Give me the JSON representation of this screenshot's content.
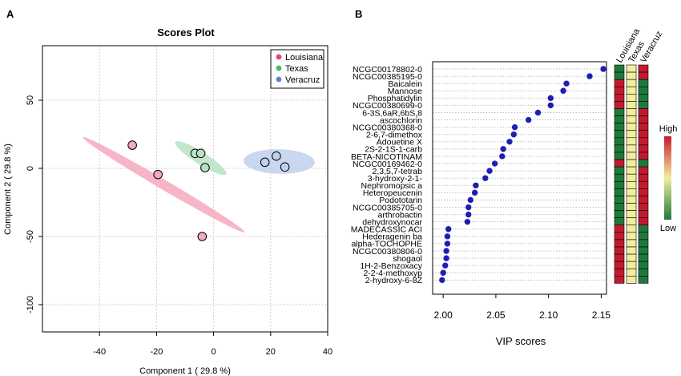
{
  "panel_a": {
    "label": "A"
  },
  "panel_b": {
    "label": "B"
  },
  "chart_data": [
    {
      "type": "scatter",
      "title": "Scores Plot",
      "xlabel": "Component 1 ( 29.8 %)",
      "ylabel": "Component 2 ( 29.8 %)",
      "xlim": [
        -60,
        40
      ],
      "ylim": [
        -120,
        90
      ],
      "xticks": [
        "-40",
        "-20",
        "0",
        "20",
        "40"
      ],
      "yticks": [
        "-100",
        "-50",
        "0",
        "50"
      ],
      "grid": true,
      "legend_position": "top-right",
      "series": [
        {
          "name": "Louisiana",
          "color": "#e8446e",
          "ellipse_color": "#f4a9bd",
          "points": [
            [
              -28.5,
              17
            ],
            [
              -19.5,
              -4.5
            ],
            [
              -4,
              -50
            ]
          ],
          "ellipse": {
            "cx": -17.5,
            "cy": -12,
            "major": 45,
            "minor": 2.6,
            "angle_deg": -51
          }
        },
        {
          "name": "Texas",
          "color": "#4cb76a",
          "ellipse_color": "#b8e3c2",
          "points": [
            [
              -6.5,
              11
            ],
            [
              -4.5,
              11
            ],
            [
              -3,
              0.5
            ]
          ],
          "ellipse": {
            "cx": -4.5,
            "cy": 7.5,
            "major": 15,
            "minor": 3.2,
            "angle_deg": -55
          }
        },
        {
          "name": "Veracruz",
          "color": "#5b82cf",
          "ellipse_color": "#c0d0ef",
          "points": [
            [
              18,
              4.5
            ],
            [
              22,
              9
            ],
            [
              25,
              1
            ]
          ],
          "ellipse": {
            "cx": 23,
            "cy": 5,
            "major": 12.5,
            "minor": 9,
            "angle_deg": -5
          }
        }
      ]
    },
    {
      "type": "scatter",
      "xlabel": "VIP scores",
      "xlim": [
        1.99,
        2.155
      ],
      "xticks": [
        "2.00",
        "2.05",
        "2.10",
        "2.15"
      ],
      "dot_color": "#1e1eb4",
      "items": [
        {
          "name": "NCGC00178802-0",
          "vip": 2.152
        },
        {
          "name": "NCGC00385195-0",
          "vip": 2.139
        },
        {
          "name": "Baicalein",
          "vip": 2.117
        },
        {
          "name": "Mannose",
          "vip": 2.114
        },
        {
          "name": "Phosphatidylin",
          "vip": 2.102
        },
        {
          "name": "NCGC00380699-0",
          "vip": 2.102
        },
        {
          "name": "6-3S,6aR,6bS,8",
          "vip": 2.09
        },
        {
          "name": "ascochlorin",
          "vip": 2.081
        },
        {
          "name": "NCGC00380368-0",
          "vip": 2.068
        },
        {
          "name": "2-6,7-dimethox",
          "vip": 2.067
        },
        {
          "name": "Adouetine X",
          "vip": 2.063
        },
        {
          "name": "2S-2-1S-1-carb",
          "vip": 2.057
        },
        {
          "name": "BETA-NICOTINAM",
          "vip": 2.056
        },
        {
          "name": "NCGC00169462-0",
          "vip": 2.049
        },
        {
          "name": "2,3,5,7-tetrab",
          "vip": 2.044
        },
        {
          "name": "3-hydroxy-2-1-",
          "vip": 2.04
        },
        {
          "name": "Nephromopsic a",
          "vip": 2.031
        },
        {
          "name": "Heteropeucenin",
          "vip": 2.03
        },
        {
          "name": "Podototarin",
          "vip": 2.026
        },
        {
          "name": "NCGC00385705-0",
          "vip": 2.024
        },
        {
          "name": "arthrobactin",
          "vip": 2.024
        },
        {
          "name": "dehydroxynocar",
          "vip": 2.023
        },
        {
          "name": "MADECASSIC ACI",
          "vip": 2.005
        },
        {
          "name": "Hederagenin ba",
          "vip": 2.004
        },
        {
          "name": "alpha-TOCHOPHE",
          "vip": 2.004
        },
        {
          "name": "NCGC00380806-0",
          "vip": 2.003
        },
        {
          "name": "shogaol",
          "vip": 2.003
        },
        {
          "name": "1H-2-Benzoxacy",
          "vip": 2.002
        },
        {
          "name": "2-2-4-methoxyp",
          "vip": 2.0
        },
        {
          "name": "2-hydroxy-6-8Z",
          "vip": 1.999
        }
      ]
    },
    {
      "type": "heatmap",
      "columns": [
        "Louisiana",
        "Texas",
        "Veracruz"
      ],
      "levels": {
        "L": "#1e7a3c",
        "M": "#f2ee9f",
        "H": "#c41a2e"
      },
      "rows": [
        "LMH",
        "LMH",
        "HML",
        "HML",
        "HML",
        "HML",
        "LMH",
        "LMH",
        "LMH",
        "LMH",
        "LMH",
        "LMH",
        "LMH",
        "HML",
        "LMH",
        "LMH",
        "LMH",
        "LMH",
        "LMH",
        "LMH",
        "LMH",
        "LMH",
        "HML",
        "HML",
        "HML",
        "HML",
        "HML",
        "HML",
        "HML",
        "HML"
      ],
      "legend": {
        "high_label": "High",
        "low_label": "Low"
      }
    }
  ]
}
